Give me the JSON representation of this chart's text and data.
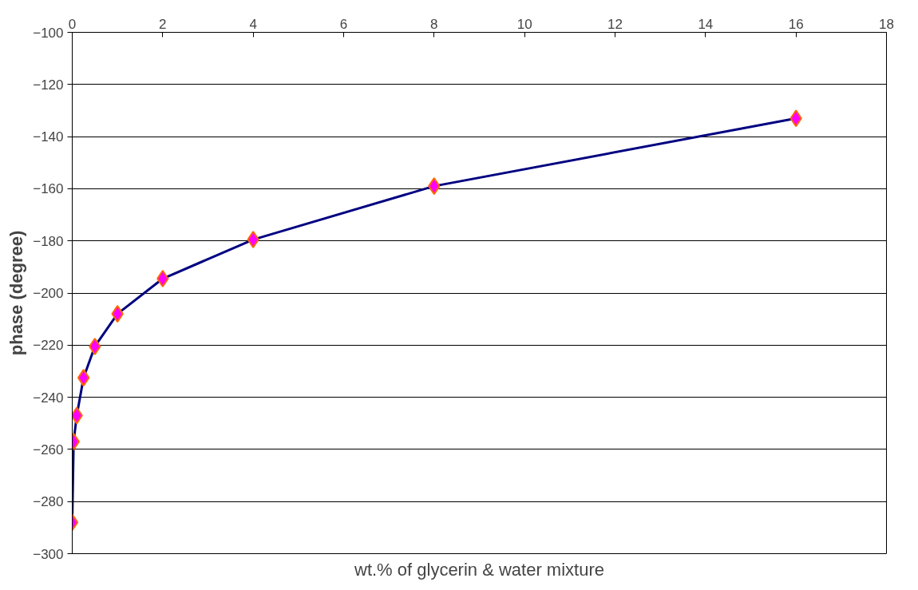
{
  "chart_data": {
    "type": "line",
    "xlabel": "wt.% of glycerin & water mixture",
    "ylabel": "phase (degree)",
    "x": [
      0,
      0.03,
      0.1,
      0.25,
      0.5,
      1,
      2,
      4,
      8,
      16
    ],
    "series": [
      {
        "color": "#000080",
        "values": [
          -288,
          -257,
          -247,
          -232.5,
          -220.5,
          -208,
          -194.5,
          -179.5,
          -159,
          -133
        ]
      }
    ],
    "xlim": [
      0,
      18
    ],
    "xticks": [
      0,
      2,
      4,
      6,
      8,
      10,
      12,
      14,
      16,
      18
    ],
    "ylim": [
      -300,
      -100
    ],
    "yticks": [
      -300,
      -280,
      -260,
      -240,
      -220,
      -200,
      -180,
      -160,
      -140,
      -120,
      -100
    ],
    "grid": "y",
    "marker": "diamond",
    "line_style": "solid"
  }
}
